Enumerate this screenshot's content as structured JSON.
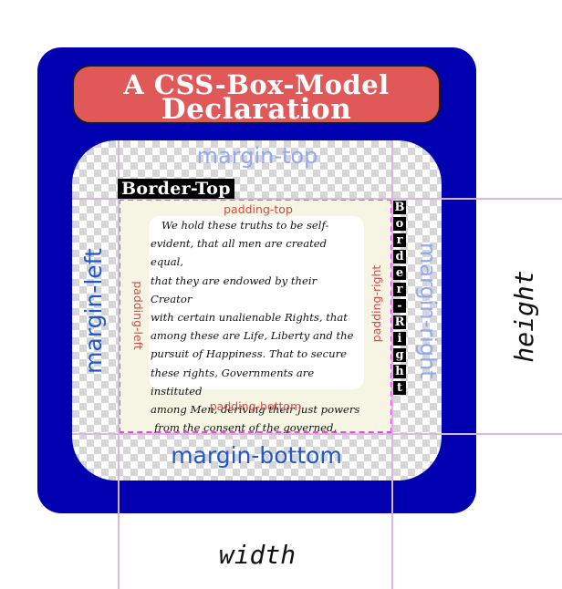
{
  "title": {
    "line1": "A CSS-Box-Model",
    "line2": "Declaration"
  },
  "labels": {
    "margin_top": "margin-top",
    "margin_bottom": "margin-bottom",
    "margin_left": "margin-left",
    "margin_right": "margin-right",
    "padding_top": "padding-top",
    "padding_bottom": "padding-bottom",
    "padding_left": "padding-left",
    "padding_right": "padding-right",
    "border_top": "Border-Top",
    "border_right": "Border-Right",
    "width": "width",
    "height": "height"
  },
  "content_text": [
    "We hold these truths to be self-",
    "evident, that all men are created equal,",
    "that they are endowed by their Creator",
    "with certain unalienable Rights, that",
    "among these are Life, Liberty and the",
    "pursuit of Happiness. That to secure",
    "these rights, Governments are instituted",
    "among Men, deriving their just powers",
    "from the consent of the governed,"
  ],
  "colors": {
    "outer_box": "#0000b0",
    "title_banner": "#e05858",
    "margin_label_light": "#93a8f0",
    "margin_label_dark": "#2057cc",
    "padding_label": "#d84848",
    "guide_lines": "#d9b8e0",
    "content_border": "#ee44ee",
    "content_bg": "#f6f5e4"
  }
}
